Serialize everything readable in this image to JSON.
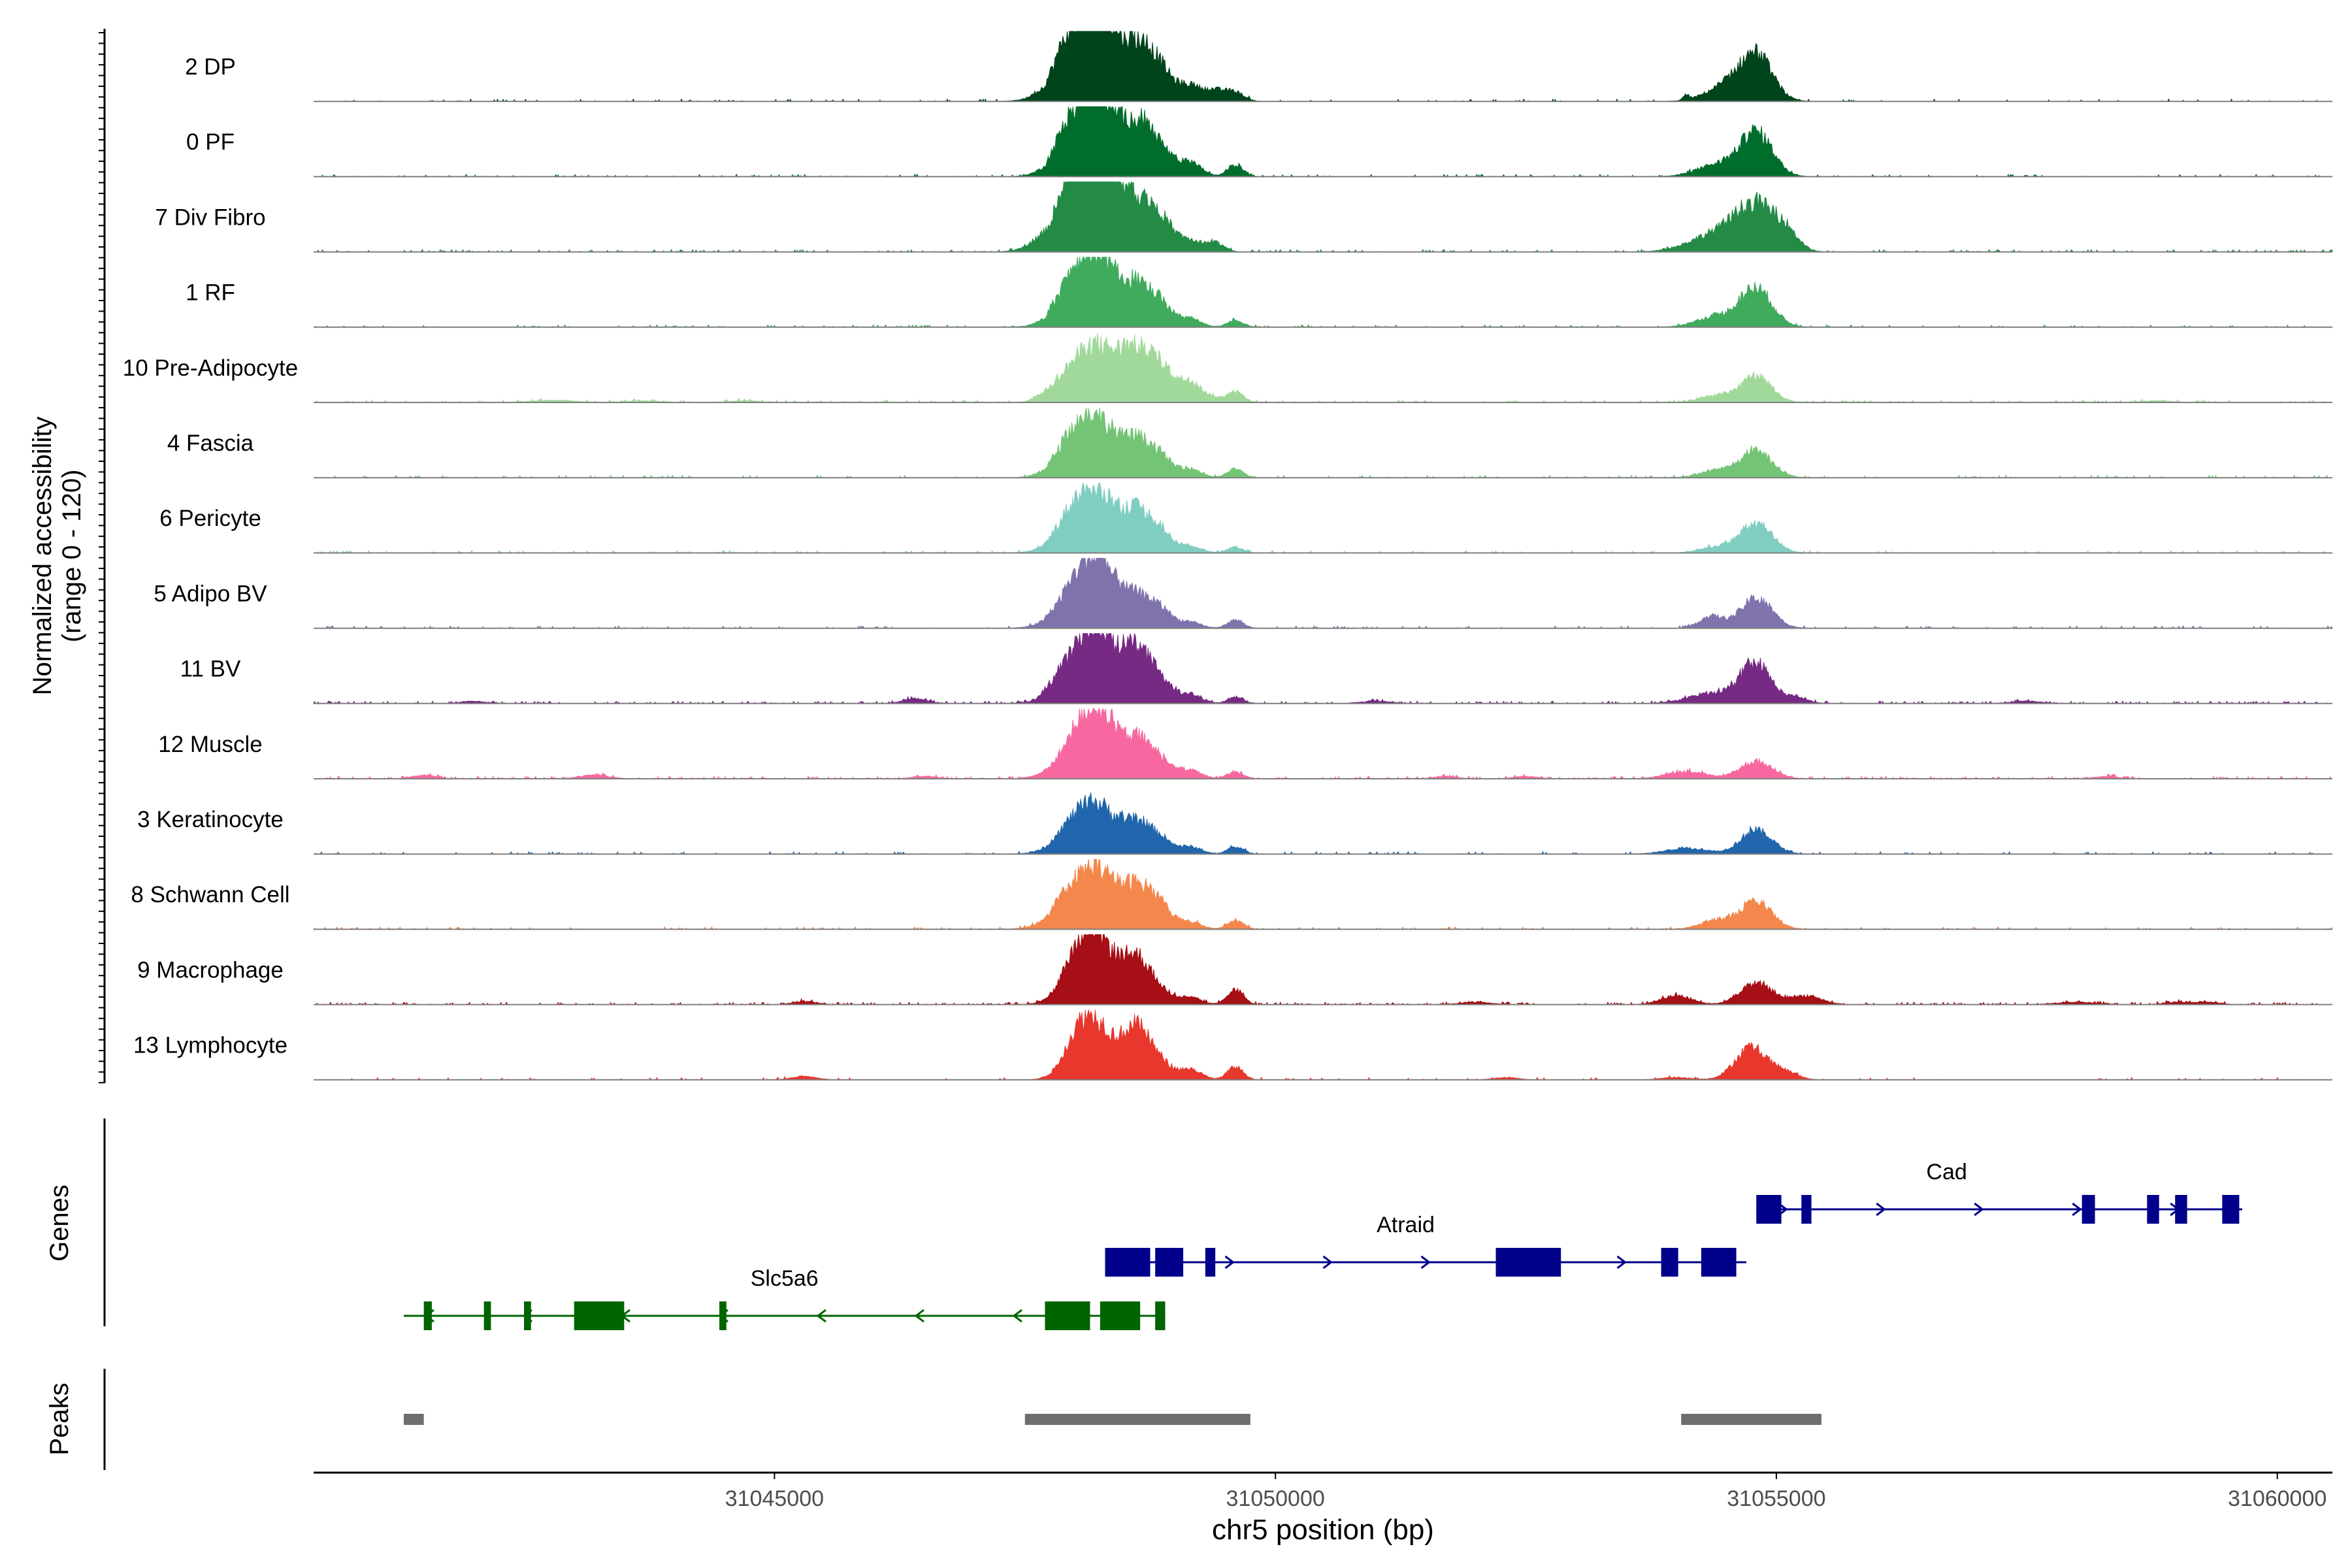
{
  "chart_data": {
    "type": "area",
    "title": "",
    "ylabel_lines": [
      "Normalized accessibility",
      "(range 0 - 120)"
    ],
    "ylim": [
      0,
      120
    ],
    "xlabel": "chr5 position (bp)",
    "xlim": [
      31040400,
      31060550
    ],
    "xticks": [
      31045000,
      31050000,
      31055000,
      31060000
    ],
    "xtick_labels": [
      "31045000",
      "31050000",
      "31055000",
      "31060000"
    ],
    "tracks": [
      {
        "name": "2 DP",
        "color": "#00441b",
        "noise": 0.015,
        "extra": [],
        "peaks": [
          [
            31047700,
            31048500,
            50
          ],
          [
            31048000,
            220,
            70
          ],
          [
            31048250,
            180,
            82
          ],
          [
            31048600,
            160,
            88
          ],
          [
            31048850,
            130,
            45
          ],
          [
            31049150,
            110,
            25
          ],
          [
            31049400,
            110,
            18
          ],
          [
            31049600,
            90,
            14
          ],
          [
            31054100,
            30,
            8
          ],
          [
            31054800,
            160,
            75
          ],
          [
            31054500,
            200,
            25
          ]
        ]
      },
      {
        "name": "0 PF",
        "color": "#006d2c",
        "noise": 0.02,
        "extra": [],
        "peaks": [
          [
            31047700,
            31048500,
            45
          ],
          [
            31048000,
            200,
            60
          ],
          [
            31048250,
            160,
            80
          ],
          [
            31048600,
            150,
            90
          ],
          [
            31048850,
            120,
            40
          ],
          [
            31049150,
            110,
            25
          ],
          [
            31049600,
            80,
            20
          ],
          [
            31054800,
            160,
            75
          ],
          [
            31054400,
            200,
            20
          ]
        ]
      },
      {
        "name": "7 Div Fibro",
        "color": "#238b45",
        "noise": 0.03,
        "extra": [],
        "peaks": [
          [
            31047750,
            31048500,
            70
          ],
          [
            31048000,
            240,
            80
          ],
          [
            31048250,
            170,
            95
          ],
          [
            31048600,
            180,
            80
          ],
          [
            31048850,
            130,
            40
          ],
          [
            31049150,
            110,
            18
          ],
          [
            31049400,
            90,
            15
          ],
          [
            31054800,
            200,
            75
          ],
          [
            31054400,
            260,
            30
          ],
          [
            31055100,
            120,
            25
          ]
        ]
      },
      {
        "name": "1 RF",
        "color": "#41ab5d",
        "noise": 0.02,
        "extra": [],
        "peaks": [
          [
            31047700,
            31048500,
            35
          ],
          [
            31048000,
            200,
            50
          ],
          [
            31048250,
            170,
            72
          ],
          [
            31048600,
            150,
            70
          ],
          [
            31048850,
            120,
            35
          ],
          [
            31049150,
            110,
            15
          ],
          [
            31049600,
            80,
            12
          ],
          [
            31054800,
            160,
            65
          ],
          [
            31054400,
            200,
            18
          ]
        ]
      },
      {
        "name": "10 Pre-Adipocyte",
        "color": "#a1d99b",
        "noise": 0.03,
        "extra": [
          [
            31042800,
            200,
            4
          ],
          [
            31043700,
            150,
            3
          ],
          [
            31044700,
            150,
            3
          ],
          [
            31058800,
            150,
            3
          ]
        ],
        "peaks": [
          [
            31047500,
            31049600,
            25
          ],
          [
            31048000,
            200,
            40
          ],
          [
            31048250,
            170,
            55
          ],
          [
            31048600,
            150,
            62
          ],
          [
            31048850,
            120,
            35
          ],
          [
            31049150,
            110,
            20
          ],
          [
            31049600,
            80,
            18
          ],
          [
            31054800,
            150,
            45
          ],
          [
            31054400,
            160,
            12
          ]
        ]
      },
      {
        "name": "4 Fascia",
        "color": "#74c476",
        "noise": 0.02,
        "extra": [],
        "peaks": [
          [
            31047700,
            31048500,
            30
          ],
          [
            31048000,
            200,
            45
          ],
          [
            31048250,
            170,
            55
          ],
          [
            31048600,
            150,
            62
          ],
          [
            31048850,
            120,
            30
          ],
          [
            31049150,
            110,
            15
          ],
          [
            31049600,
            80,
            15
          ],
          [
            31054800,
            160,
            45
          ],
          [
            31054400,
            160,
            12
          ]
        ]
      },
      {
        "name": "6 Pericyte",
        "color": "#80cdc1",
        "noise": 0.02,
        "extra": [],
        "peaks": [
          [
            31047700,
            31048500,
            30
          ],
          [
            31048000,
            200,
            45
          ],
          [
            31048250,
            170,
            60
          ],
          [
            31048600,
            150,
            70
          ],
          [
            31048850,
            120,
            30
          ],
          [
            31049150,
            110,
            12
          ],
          [
            31049600,
            80,
            10
          ],
          [
            31054800,
            160,
            50
          ],
          [
            31054400,
            160,
            10
          ]
        ]
      },
      {
        "name": "5 Adipo BV",
        "color": "#8073ac",
        "noise": 0.02,
        "extra": [],
        "peaks": [
          [
            31047700,
            31048500,
            20
          ],
          [
            31048050,
            220,
            55
          ],
          [
            31048250,
            170,
            65
          ],
          [
            31048600,
            150,
            50
          ],
          [
            31048850,
            120,
            28
          ],
          [
            31049150,
            110,
            10
          ],
          [
            31049600,
            80,
            14
          ],
          [
            31054350,
            120,
            20
          ],
          [
            31054800,
            160,
            50
          ]
        ]
      },
      {
        "name": "11 BV",
        "color": "#762a83",
        "noise": 0.04,
        "extra": [
          [
            31046400,
            120,
            8
          ],
          [
            31042000,
            120,
            4
          ],
          [
            31051000,
            150,
            4
          ],
          [
            31057500,
            150,
            4
          ]
        ],
        "peaks": [
          [
            31047600,
            31048500,
            25
          ],
          [
            31048050,
            220,
            55
          ],
          [
            31048250,
            170,
            65
          ],
          [
            31048600,
            150,
            90
          ],
          [
            31048850,
            120,
            32
          ],
          [
            31049150,
            110,
            15
          ],
          [
            31049600,
            80,
            10
          ],
          [
            31054400,
            250,
            18
          ],
          [
            31054800,
            150,
            65
          ],
          [
            31055200,
            110,
            10
          ]
        ]
      },
      {
        "name": "12 Muscle",
        "color": "#f768a1",
        "noise": 0.04,
        "extra": [
          [
            31041500,
            120,
            6
          ],
          [
            31043200,
            150,
            6
          ],
          [
            31046500,
            120,
            4
          ],
          [
            31051700,
            120,
            4
          ],
          [
            31052500,
            120,
            4
          ],
          [
            31058300,
            120,
            4
          ]
        ],
        "peaks": [
          [
            31047800,
            31048500,
            30
          ],
          [
            31048050,
            220,
            50
          ],
          [
            31048250,
            170,
            55
          ],
          [
            31048600,
            150,
            65
          ],
          [
            31048850,
            120,
            25
          ],
          [
            31049150,
            110,
            15
          ],
          [
            31049600,
            80,
            12
          ],
          [
            31054100,
            200,
            12
          ],
          [
            31054800,
            160,
            30
          ]
        ]
      },
      {
        "name": "3 Keratinocyte",
        "color": "#2166ac",
        "noise": 0.02,
        "extra": [],
        "peaks": [
          [
            31047700,
            31048500,
            20
          ],
          [
            31048000,
            200,
            35
          ],
          [
            31048250,
            170,
            50
          ],
          [
            31048600,
            150,
            50
          ],
          [
            31048850,
            120,
            22
          ],
          [
            31049150,
            110,
            12
          ],
          [
            31049600,
            80,
            12
          ],
          [
            31054100,
            200,
            10
          ],
          [
            31054800,
            160,
            40
          ]
        ]
      },
      {
        "name": "8 Schwann Cell",
        "color": "#f4874b",
        "noise": 0.02,
        "extra": [],
        "peaks": [
          [
            31047700,
            31048500,
            25
          ],
          [
            31048000,
            220,
            45
          ],
          [
            31048250,
            170,
            55
          ],
          [
            31048600,
            150,
            70
          ],
          [
            31048850,
            120,
            35
          ],
          [
            31049150,
            110,
            12
          ],
          [
            31049600,
            80,
            15
          ],
          [
            31054400,
            160,
            15
          ],
          [
            31054800,
            160,
            45
          ]
        ]
      },
      {
        "name": "9 Macrophage",
        "color": "#a50f15",
        "noise": 0.04,
        "extra": [
          [
            31045300,
            120,
            5
          ],
          [
            31052000,
            150,
            4
          ],
          [
            31058000,
            200,
            4
          ],
          [
            31059000,
            120,
            4
          ],
          [
            31059300,
            120,
            4
          ]
        ],
        "peaks": [
          [
            31047800,
            31048500,
            20
          ],
          [
            31048050,
            180,
            70
          ],
          [
            31048250,
            160,
            65
          ],
          [
            31048600,
            140,
            80
          ],
          [
            31048850,
            120,
            20
          ],
          [
            31049150,
            110,
            12
          ],
          [
            31049600,
            80,
            25
          ],
          [
            31054000,
            150,
            15
          ],
          [
            31054800,
            160,
            35
          ],
          [
            31055300,
            150,
            15
          ]
        ]
      },
      {
        "name": "13 Lymphocyte",
        "color": "#e8372d",
        "noise": 0.01,
        "extra": [
          [
            31045300,
            120,
            6
          ],
          [
            31052300,
            120,
            4
          ],
          [
            31054000,
            150,
            4
          ]
        ],
        "peaks": [
          [
            31047800,
            31048500,
            15
          ],
          [
            31048050,
            160,
            65
          ],
          [
            31048250,
            150,
            55
          ],
          [
            31048600,
            140,
            88
          ],
          [
            31048850,
            120,
            25
          ],
          [
            31049150,
            110,
            18
          ],
          [
            31049600,
            80,
            22
          ],
          [
            31054750,
            160,
            55
          ],
          [
            31055100,
            120,
            12
          ]
        ]
      }
    ],
    "genes_panel_label": "Genes",
    "peaks_panel_label": "Peaks",
    "genes": [
      {
        "name": "Slc5a6",
        "strand": "-",
        "color": "#006400",
        "start": 31041300,
        "end": 31048900,
        "label_pos": 31045100,
        "exons": [
          [
            31041500,
            31041580
          ],
          [
            31042100,
            31042170
          ],
          [
            31042500,
            31042570
          ],
          [
            31043000,
            31043500
          ],
          [
            31044450,
            31044520
          ],
          [
            31047700,
            31048150
          ],
          [
            31048250,
            31048650
          ],
          [
            31048800,
            31048900
          ]
        ]
      },
      {
        "name": "Atraid",
        "strand": "+",
        "color": "#00008b",
        "start": 31048300,
        "end": 31054700,
        "label_pos": 31051300,
        "exons": [
          [
            31048300,
            31048750
          ],
          [
            31048800,
            31049080
          ],
          [
            31049300,
            31049400
          ],
          [
            31052200,
            31052850
          ],
          [
            31053850,
            31054020
          ],
          [
            31054250,
            31054600
          ]
        ]
      },
      {
        "name": "Cad",
        "strand": "+",
        "color": "#00008b",
        "start": 31054800,
        "end": 31059650,
        "label_pos": 31056700,
        "exons": [
          [
            31054800,
            31055050
          ],
          [
            31055250,
            31055350
          ],
          [
            31058050,
            31058180
          ],
          [
            31058700,
            31058820
          ],
          [
            31058980,
            31059100
          ],
          [
            31059450,
            31059620
          ]
        ]
      }
    ],
    "peak_regions": [
      [
        31041300,
        31041500
      ],
      [
        31047500,
        31049750
      ],
      [
        31054050,
        31055450
      ]
    ]
  }
}
